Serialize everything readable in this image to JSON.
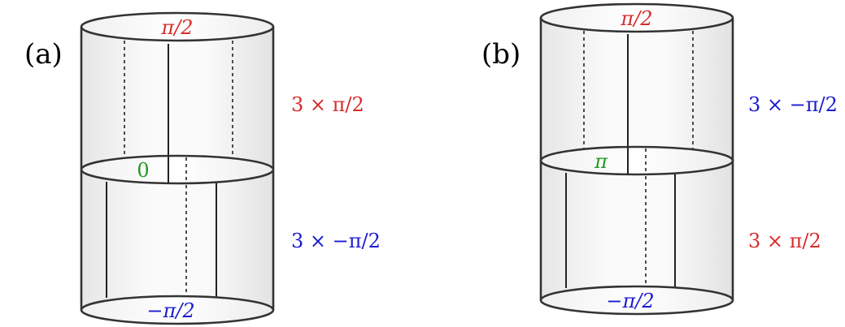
{
  "panels": [
    {
      "label": "(a)",
      "top_ring": "π/2",
      "middle_ring": "0",
      "bottom_ring": "−π/2",
      "upper_annotation": "3 × π/2",
      "lower_annotation": "3 × −π/2"
    },
    {
      "label": "(b)",
      "top_ring": "π/2",
      "middle_ring": "π",
      "bottom_ring": "−π/2",
      "upper_annotation": "3 × −π/2",
      "lower_annotation": "3 × π/2"
    }
  ],
  "colors": {
    "positive": "#d92b2b",
    "negative": "#1a1ad0",
    "middle": "#1e9a1e",
    "line": "#333333"
  }
}
